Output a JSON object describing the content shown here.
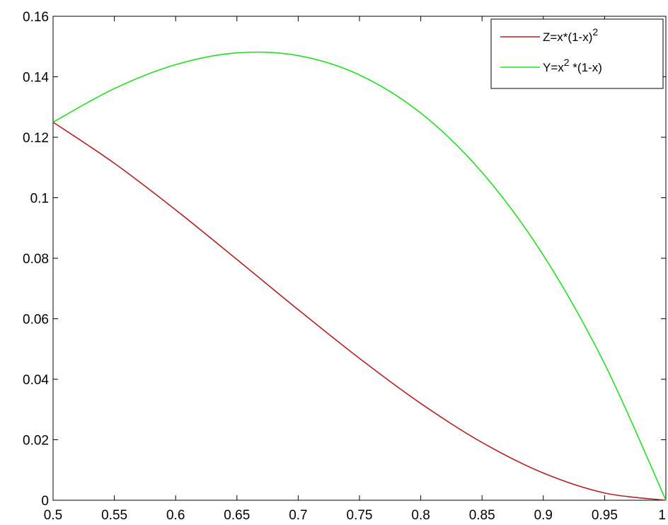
{
  "chart_data": {
    "type": "line",
    "title": "",
    "xlabel": "",
    "ylabel": "",
    "xlim": [
      0.5,
      1
    ],
    "ylim": [
      0,
      0.16
    ],
    "x_ticks": [
      0.5,
      0.55,
      0.6,
      0.65,
      0.7,
      0.75,
      0.8,
      0.85,
      0.9,
      0.95,
      1
    ],
    "x_tick_labels": [
      "0.5",
      "0.55",
      "0.6",
      "0.65",
      "0.7",
      "0.75",
      "0.8",
      "0.85",
      "0.9",
      "0.95",
      "1"
    ],
    "y_ticks": [
      0,
      0.02,
      0.04,
      0.06,
      0.08,
      0.1,
      0.12,
      0.14,
      0.16
    ],
    "y_tick_labels": [
      "0",
      "0.02",
      "0.04",
      "0.06",
      "0.08",
      "0.1",
      "0.12",
      "0.14",
      "0.16"
    ],
    "grid": false,
    "legend_position": "top-right",
    "x": [
      0.5,
      0.55,
      0.6,
      0.65,
      0.7,
      0.75,
      0.8,
      0.85,
      0.9,
      0.95,
      1
    ],
    "series": [
      {
        "name": "Z=x*(1-x)²",
        "legend_base": "Z=x*(1-x)",
        "legend_sup": "2",
        "legend_tail": "",
        "color": "#b22222",
        "values": [
          0.125,
          0.1114,
          0.096,
          0.0796,
          0.063,
          0.0469,
          0.032,
          0.0191,
          0.009,
          0.0024,
          0
        ]
      },
      {
        "name": "Y=x² *(1-x)",
        "legend_base": "Y=x",
        "legend_sup": "2",
        "legend_tail": " *(1-x)",
        "color": "#22dd22",
        "values": [
          0.125,
          0.1361,
          0.144,
          0.1479,
          0.147,
          0.1406,
          0.128,
          0.1084,
          0.081,
          0.0451,
          0
        ]
      }
    ]
  }
}
